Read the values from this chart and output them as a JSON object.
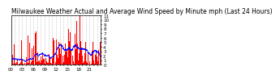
{
  "title": "Milwaukee Weather Actual and Average Wind Speed by Minute mph (Last 24 Hours)",
  "ylim": [
    0,
    11
  ],
  "yticks": [
    0,
    1,
    2,
    3,
    4,
    5,
    6,
    7,
    8,
    9,
    10,
    11
  ],
  "bar_color": "#ff0000",
  "line_color": "#0000ff",
  "background_color": "#ffffff",
  "plot_bg_color": "#ffffff",
  "grid_color": "#aaaaaa",
  "title_fontsize": 5.5,
  "tick_fontsize": 4.0,
  "n_points": 1440
}
